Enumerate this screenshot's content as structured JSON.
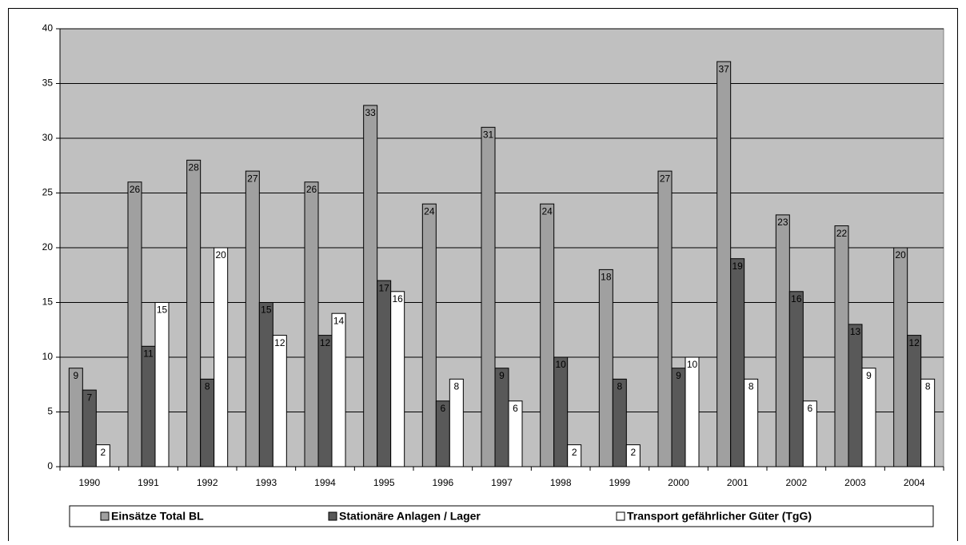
{
  "chart_data": {
    "type": "bar",
    "categories": [
      "1990",
      "1991",
      "1992",
      "1993",
      "1994",
      "1995",
      "1996",
      "1997",
      "1998",
      "1999",
      "2000",
      "2001",
      "2002",
      "2003",
      "2004"
    ],
    "series": [
      {
        "name": "Einsätze Total BL",
        "color": "#a0a0a0",
        "values": [
          9,
          26,
          28,
          27,
          26,
          33,
          24,
          31,
          24,
          18,
          27,
          37,
          23,
          22,
          20
        ]
      },
      {
        "name": "Stationäre Anlagen / Lager",
        "color": "#595959",
        "values": [
          7,
          11,
          8,
          15,
          12,
          17,
          6,
          9,
          10,
          8,
          9,
          19,
          16,
          13,
          12
        ]
      },
      {
        "name": "Transport gefährlicher Güter (TgG)",
        "color": "#ffffff",
        "values": [
          2,
          15,
          20,
          12,
          14,
          16,
          8,
          6,
          2,
          2,
          10,
          8,
          6,
          9,
          8
        ]
      }
    ],
    "ylim": [
      0,
      40
    ],
    "yticks": [
      0,
      5,
      10,
      15,
      20,
      25,
      30,
      35,
      40
    ],
    "grid": true,
    "legend": "bottom",
    "plot_background": "#c0c0c0"
  }
}
